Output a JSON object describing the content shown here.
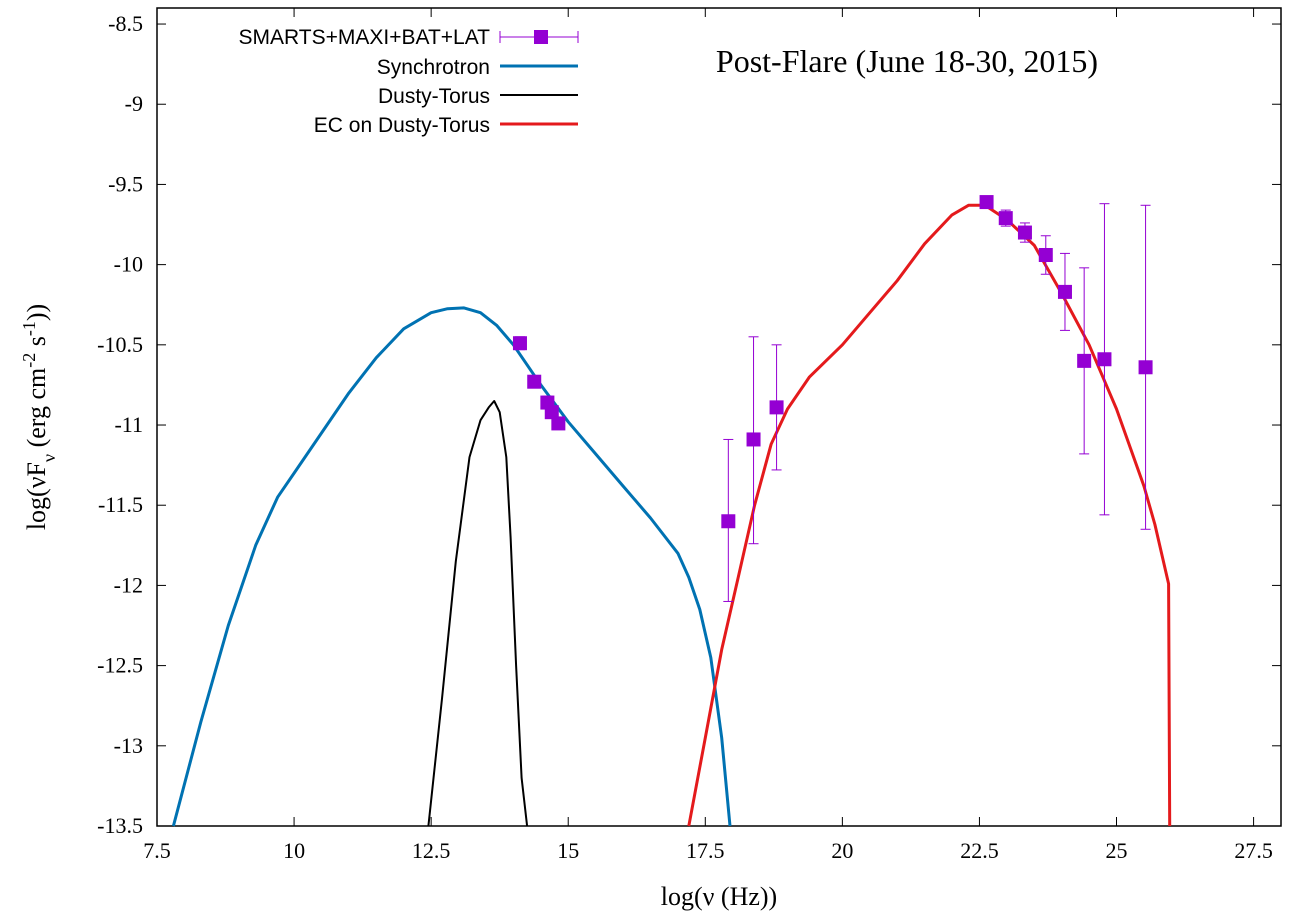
{
  "chart_data": {
    "type": "line",
    "title": "Post-Flare (June 18-30, 2015)",
    "xlabel": "log(ν (Hz))",
    "ylabel": "log(νF_ν (erg cm^-2 s^-1))",
    "ylabel_parts": {
      "prefix": "log(νF",
      "sub": "ν",
      "mid1": " (erg cm",
      "sup1": "-2",
      "mid2": " s",
      "sup2": "-1",
      "suffix": "))"
    },
    "xlim": [
      7.5,
      28.0
    ],
    "ylim": [
      -13.5,
      -8.4
    ],
    "x_ticks": [
      "7.5",
      "10",
      "12.5",
      "15",
      "17.5",
      "20",
      "22.5",
      "25",
      "27.5"
    ],
    "x_tick_values": [
      7.5,
      10,
      12.5,
      15,
      17.5,
      20,
      22.5,
      25,
      27.5
    ],
    "y_ticks": [
      "-8.5",
      "-9",
      "-9.5",
      "-10",
      "-10.5",
      "-11",
      "-11.5",
      "-12",
      "-12.5",
      "-13",
      "-13.5"
    ],
    "y_tick_values": [
      -8.5,
      -9,
      -9.5,
      -10,
      -10.5,
      -11,
      -11.5,
      -12,
      -12.5,
      -13,
      -13.5
    ],
    "grid": false,
    "legend_position": "top-left",
    "series": [
      {
        "name": "SMARTS+MAXI+BAT+LAT",
        "kind": "errorbars",
        "color": "#9400d3",
        "points": [
          {
            "x": 14.12,
            "y": -10.49,
            "ylo": -10.53,
            "yhi": -10.45
          },
          {
            "x": 14.38,
            "y": -10.73,
            "ylo": -10.76,
            "yhi": -10.7
          },
          {
            "x": 14.62,
            "y": -10.86,
            "ylo": -10.9,
            "yhi": -10.82
          },
          {
            "x": 14.7,
            "y": -10.92,
            "ylo": -10.95,
            "yhi": -10.89
          },
          {
            "x": 14.82,
            "y": -10.99,
            "ylo": -11.02,
            "yhi": -10.96
          },
          {
            "x": 17.92,
            "y": -11.6,
            "ylo": -12.1,
            "yhi": -11.09
          },
          {
            "x": 18.38,
            "y": -11.09,
            "ylo": -11.74,
            "yhi": -10.45
          },
          {
            "x": 18.8,
            "y": -10.89,
            "ylo": -11.28,
            "yhi": -10.5
          },
          {
            "x": 22.63,
            "y": -9.61,
            "ylo": -9.63,
            "yhi": -9.59
          },
          {
            "x": 22.98,
            "y": -9.71,
            "ylo": -9.76,
            "yhi": -9.66
          },
          {
            "x": 23.33,
            "y": -9.8,
            "ylo": -9.86,
            "yhi": -9.74
          },
          {
            "x": 23.71,
            "y": -9.94,
            "ylo": -10.06,
            "yhi": -9.82
          },
          {
            "x": 24.06,
            "y": -10.17,
            "ylo": -10.41,
            "yhi": -9.93
          },
          {
            "x": 24.41,
            "y": -10.6,
            "ylo": -11.18,
            "yhi": -10.02
          },
          {
            "x": 24.78,
            "y": -10.59,
            "ylo": -11.56,
            "yhi": -9.62
          },
          {
            "x": 25.53,
            "y": -10.64,
            "ylo": -11.65,
            "yhi": -9.63
          }
        ]
      },
      {
        "name": "Synchrotron",
        "kind": "line",
        "color": "#0072b2",
        "x": [
          7.8,
          8.3,
          8.8,
          9.3,
          9.7,
          10.0,
          10.5,
          11.0,
          11.5,
          12.0,
          12.5,
          12.8,
          13.1,
          13.4,
          13.7,
          14.0,
          14.5,
          15.0,
          15.5,
          16.0,
          16.5,
          17.0,
          17.2,
          17.4,
          17.6,
          17.8,
          17.95
        ],
        "y": [
          -13.5,
          -12.85,
          -12.25,
          -11.75,
          -11.45,
          -11.3,
          -11.05,
          -10.8,
          -10.58,
          -10.4,
          -10.3,
          -10.275,
          -10.27,
          -10.3,
          -10.38,
          -10.5,
          -10.75,
          -10.98,
          -11.18,
          -11.38,
          -11.58,
          -11.8,
          -11.95,
          -12.15,
          -12.45,
          -12.95,
          -13.5
        ]
      },
      {
        "name": "Dusty-Torus",
        "kind": "line",
        "color": "#000000",
        "x": [
          12.45,
          12.7,
          12.95,
          13.2,
          13.4,
          13.55,
          13.65,
          13.75,
          13.87,
          13.95,
          14.05,
          14.15,
          14.25
        ],
        "y": [
          -13.5,
          -12.7,
          -11.85,
          -11.2,
          -10.97,
          -10.89,
          -10.85,
          -10.92,
          -11.2,
          -11.7,
          -12.5,
          -13.2,
          -13.5
        ]
      },
      {
        "name": "EC on Dusty-Torus",
        "kind": "line",
        "color": "#e41a1c",
        "x": [
          17.2,
          17.5,
          17.8,
          18.1,
          18.4,
          18.7,
          19.0,
          19.4,
          20.0,
          20.5,
          21.0,
          21.5,
          22.0,
          22.3,
          22.6,
          23.0,
          23.5,
          24.0,
          24.5,
          25.0,
          25.5,
          25.7,
          25.95,
          25.97
        ],
        "y": [
          -13.5,
          -12.95,
          -12.4,
          -11.95,
          -11.5,
          -11.12,
          -10.9,
          -10.7,
          -10.5,
          -10.3,
          -10.1,
          -9.87,
          -9.69,
          -9.63,
          -9.63,
          -9.72,
          -9.88,
          -10.18,
          -10.5,
          -10.9,
          -11.38,
          -11.62,
          -11.99,
          -13.5
        ]
      }
    ]
  }
}
